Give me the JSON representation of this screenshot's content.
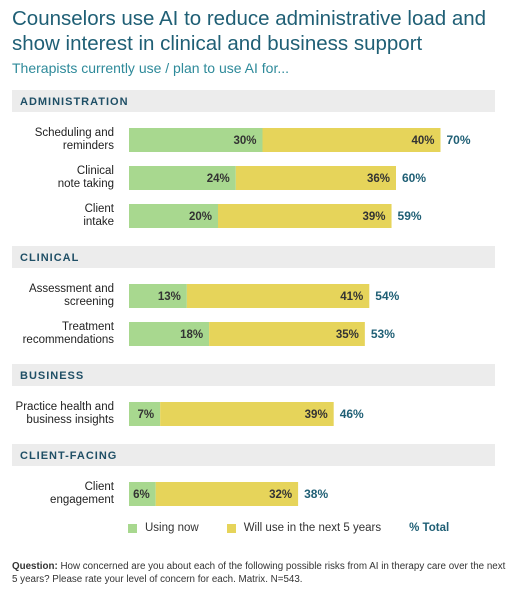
{
  "title": "Counselors use AI to reduce administrative load and show interest in clinical and business support",
  "subtitle": "Therapists currently use / plan to use AI for...",
  "legend": {
    "using": "Using now",
    "will_use": "Will use in the next 5 years",
    "total": "% Total"
  },
  "footnote": {
    "label": "Question:",
    "text": "How concerned are you about each of the following possible risks from AI in therapy care over the next 5 years? Please rate your level of concern for each. Matrix. N=543."
  },
  "colors": {
    "using": "#a8d88f",
    "will_use": "#e6d45a",
    "section_bg": "#ececec",
    "total_text": "#1f5f75"
  },
  "chart_data": {
    "type": "bar",
    "orientation": "horizontal",
    "stacked": true,
    "xlim": [
      0,
      100
    ],
    "series_names": [
      "Using now",
      "Will use in the next 5 years"
    ],
    "groups": [
      {
        "name": "ADMINISTRATION",
        "items": [
          {
            "label": [
              "Scheduling and",
              "reminders"
            ],
            "using": 30,
            "will_use": 40,
            "total": 70
          },
          {
            "label": [
              "Clinical",
              "note taking"
            ],
            "using": 24,
            "will_use": 36,
            "total": 60
          },
          {
            "label": [
              "Client",
              "intake"
            ],
            "using": 20,
            "will_use": 39,
            "total": 59
          }
        ]
      },
      {
        "name": "CLINICAL",
        "items": [
          {
            "label": [
              "Assessment and",
              "screening"
            ],
            "using": 13,
            "will_use": 41,
            "total": 54
          },
          {
            "label": [
              "Treatment",
              "recommendations"
            ],
            "using": 18,
            "will_use": 35,
            "total": 53
          }
        ]
      },
      {
        "name": "BUSINESS",
        "items": [
          {
            "label": [
              "Practice health and",
              "business insights"
            ],
            "using": 7,
            "will_use": 39,
            "total": 46
          }
        ]
      },
      {
        "name": "CLIENT-FACING",
        "items": [
          {
            "label": [
              "Client",
              "engagement"
            ],
            "using": 6,
            "will_use": 32,
            "total": 38
          }
        ]
      }
    ]
  }
}
